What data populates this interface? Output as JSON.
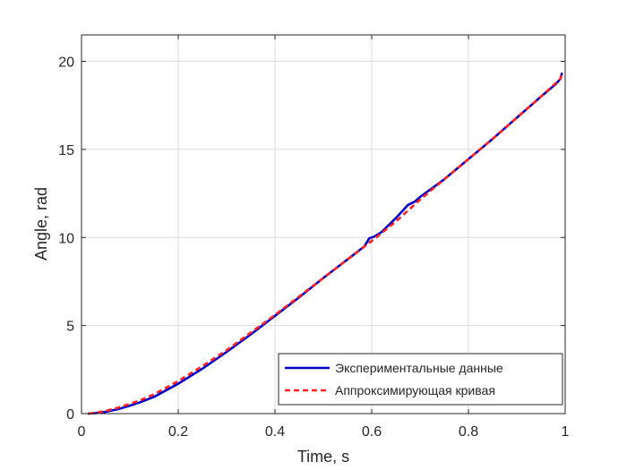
{
  "chart_data": {
    "type": "line",
    "xlabel": "Time, s",
    "ylabel": "Angle, rad",
    "xlim": [
      0,
      1
    ],
    "ylim": [
      0,
      21.5
    ],
    "xticks": [
      0,
      0.2,
      0.4,
      0.6,
      0.8,
      1
    ],
    "yticks": [
      0,
      5,
      10,
      15,
      20
    ],
    "xtick_labels": [
      "0",
      "0.2",
      "0.4",
      "0.6",
      "0.8",
      "1"
    ],
    "ytick_labels": [
      "0",
      "5",
      "10",
      "15",
      "20"
    ],
    "grid": true,
    "legend_position": "bottom-right",
    "series": [
      {
        "name": "Экспериментальные данные",
        "color": "#0000cc",
        "style": "solid",
        "x": [
          0.015,
          0.03,
          0.05,
          0.075,
          0.1,
          0.125,
          0.15,
          0.2,
          0.25,
          0.3,
          0.35,
          0.4,
          0.45,
          0.5,
          0.55,
          0.585,
          0.595,
          0.605,
          0.62,
          0.65,
          0.675,
          0.69,
          0.7,
          0.75,
          0.8,
          0.85,
          0.9,
          0.95,
          0.98,
          0.99,
          0.993
        ],
        "y": [
          0,
          0.03,
          0.1,
          0.25,
          0.45,
          0.68,
          0.95,
          1.7,
          2.55,
          3.5,
          4.5,
          5.55,
          6.6,
          7.7,
          8.75,
          9.5,
          9.95,
          10.05,
          10.3,
          11.1,
          11.85,
          12.05,
          12.3,
          13.3,
          14.45,
          15.6,
          16.8,
          18.0,
          18.7,
          19.0,
          19.3
        ]
      },
      {
        "name": "Аппроксимирующая кривая",
        "color": "#ff2020",
        "style": "dashed",
        "x": [
          0.015,
          0.03,
          0.05,
          0.075,
          0.1,
          0.125,
          0.15,
          0.2,
          0.25,
          0.3,
          0.35,
          0.4,
          0.45,
          0.5,
          0.55,
          0.6,
          0.65,
          0.7,
          0.75,
          0.8,
          0.85,
          0.9,
          0.95,
          0.99,
          0.993
        ],
        "y": [
          0,
          0.05,
          0.15,
          0.33,
          0.55,
          0.8,
          1.1,
          1.85,
          2.7,
          3.6,
          4.6,
          5.6,
          6.65,
          7.7,
          8.75,
          9.8,
          10.9,
          12.15,
          13.3,
          14.45,
          15.6,
          16.8,
          18.0,
          19.0,
          19.4
        ]
      }
    ]
  }
}
